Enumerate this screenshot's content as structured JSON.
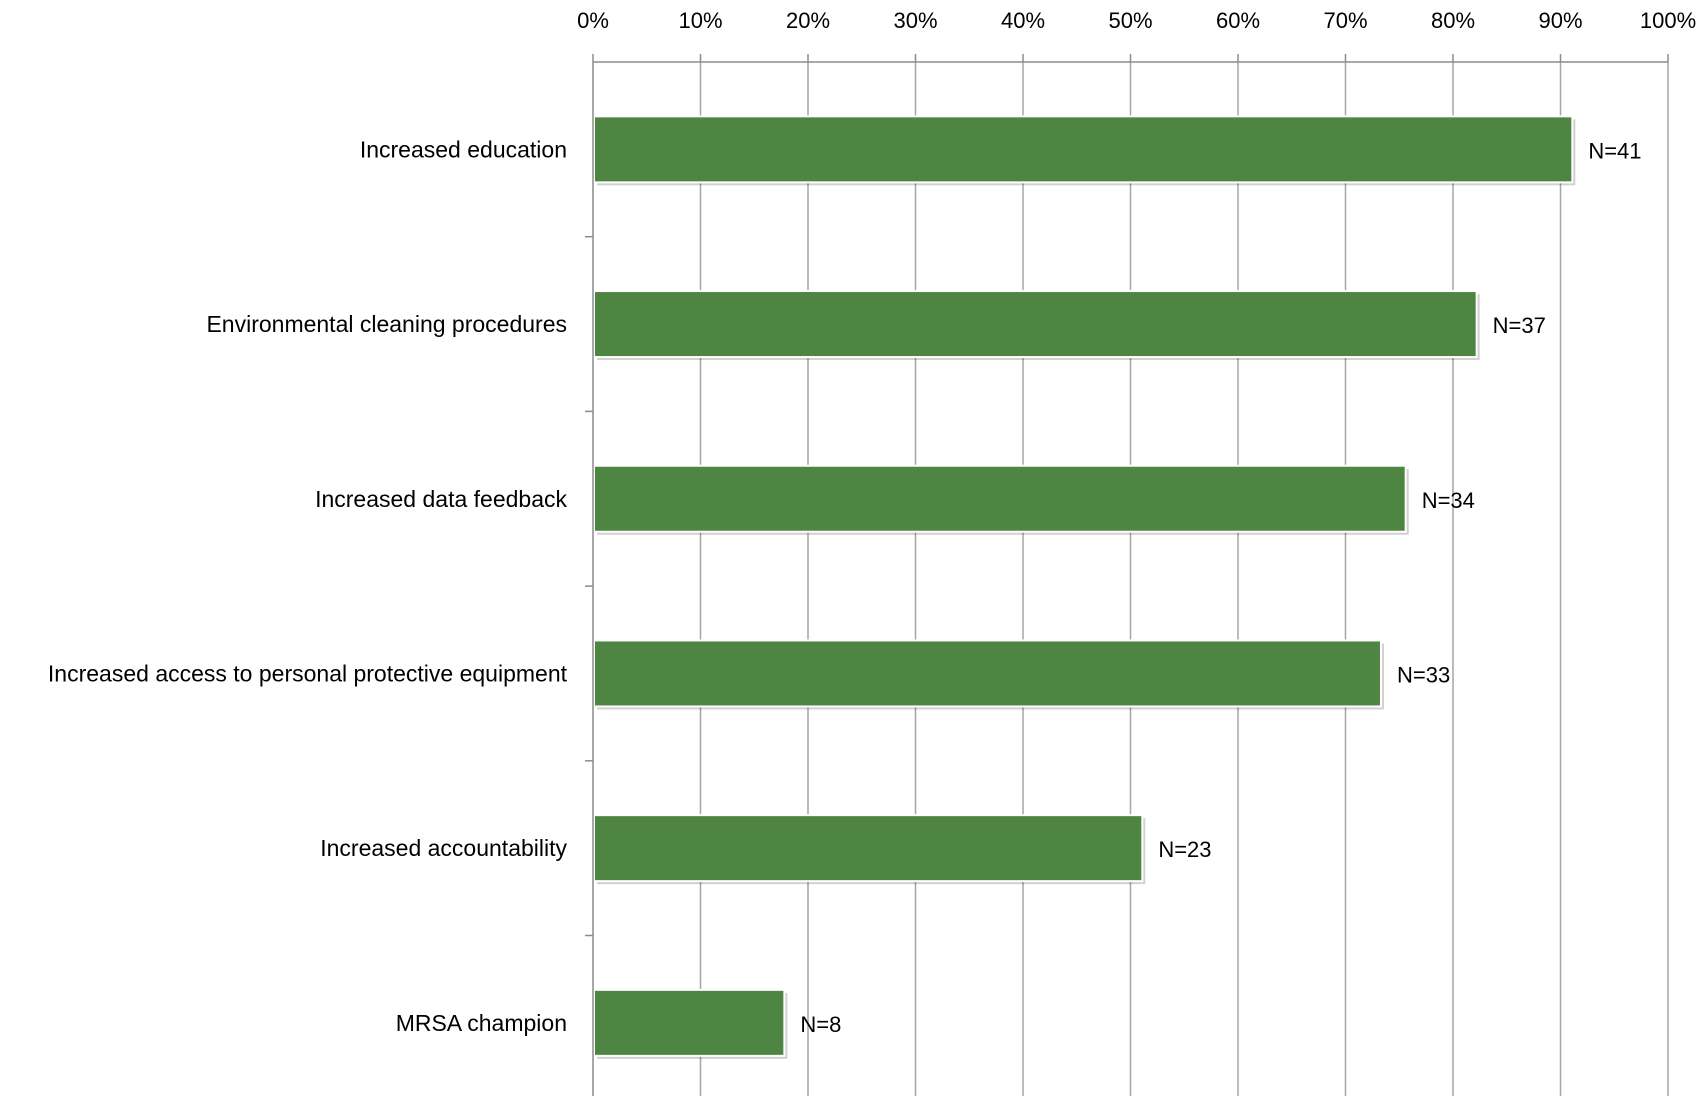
{
  "chart_data": {
    "type": "bar",
    "orientation": "horizontal",
    "categories": [
      "Increased education",
      "Environmental cleaning procedures",
      "Increased data feedback",
      "Increased access to personal protective equipment",
      "Increased accountability",
      "MRSA champion"
    ],
    "values": [
      91.1,
      82.2,
      75.6,
      73.3,
      51.1,
      17.8
    ],
    "data_labels": [
      "N=41",
      "N=37",
      "N=34",
      "N=33",
      "N=23",
      "N=8"
    ],
    "x_ticks": [
      "0%",
      "10%",
      "20%",
      "30%",
      "40%",
      "50%",
      "60%",
      "70%",
      "80%",
      "90%",
      "100%"
    ],
    "xlim": [
      0,
      100
    ],
    "x_axis_position": "top",
    "unit": "%",
    "grid": true,
    "legend": "none",
    "title": "",
    "xlabel": "",
    "ylabel": "",
    "colors": {
      "bar": "#4e8542",
      "grid": "#a6a6a6",
      "axis": "#8c8c8c"
    }
  }
}
